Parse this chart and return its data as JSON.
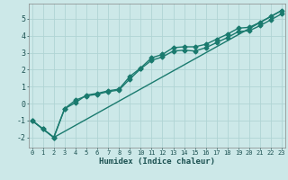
{
  "xlabel": "Humidex (Indice chaleur)",
  "background_color": "#cce8e8",
  "grid_color": "#b0d4d4",
  "line_color": "#1a7a6e",
  "xlim": [
    -0.3,
    23.3
  ],
  "ylim": [
    -2.6,
    5.9
  ],
  "xticks": [
    0,
    1,
    2,
    3,
    4,
    5,
    6,
    7,
    8,
    9,
    10,
    11,
    12,
    13,
    14,
    15,
    16,
    17,
    18,
    19,
    20,
    21,
    22,
    23
  ],
  "yticks": [
    -2,
    -1,
    0,
    1,
    2,
    3,
    4,
    5
  ],
  "line1_x": [
    0,
    1,
    2,
    3,
    4,
    5,
    6,
    7,
    8,
    9,
    10,
    11,
    12,
    13,
    14,
    15,
    16,
    17,
    18,
    19,
    20,
    21,
    22,
    23
  ],
  "line1_y": [
    -1.0,
    -1.5,
    -2.0,
    -0.3,
    0.05,
    0.5,
    0.6,
    0.75,
    0.85,
    1.6,
    2.1,
    2.7,
    2.9,
    3.3,
    3.35,
    3.35,
    3.5,
    3.8,
    4.1,
    4.45,
    4.5,
    4.8,
    5.15,
    5.5
  ],
  "line2_x": [
    0,
    1,
    2,
    3,
    4,
    5,
    6,
    7,
    8,
    9,
    10,
    11,
    12,
    13,
    14,
    15,
    16,
    17,
    18,
    19,
    20,
    21,
    22,
    23
  ],
  "line2_y": [
    -1.0,
    -1.5,
    -2.0,
    -0.3,
    0.2,
    0.45,
    0.55,
    0.7,
    0.8,
    1.45,
    2.05,
    2.55,
    2.75,
    3.1,
    3.15,
    3.1,
    3.3,
    3.6,
    3.9,
    4.25,
    4.3,
    4.6,
    4.95,
    5.3
  ],
  "line3_x": [
    0,
    2,
    23
  ],
  "line3_y": [
    -1.0,
    -2.0,
    5.5
  ],
  "marker": "D",
  "markersize": 2.5,
  "linewidth": 1.0,
  "tick_fontsize": 5.0,
  "xlabel_fontsize": 6.5
}
